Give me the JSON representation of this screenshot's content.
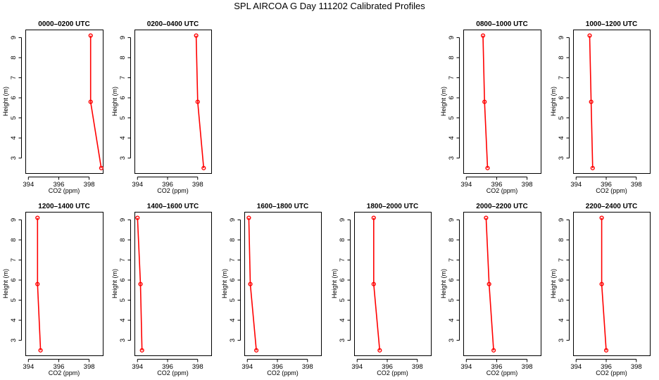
{
  "title": "SPL AIRCOA G  Day 111202  Calibrated Profiles",
  "colors": {
    "line": "#ff0000",
    "frame": "#000000",
    "background": "#ffffff"
  },
  "chart_data": [
    {
      "type": "line",
      "title": "0000–0200 UTC",
      "xlabel": "CO2 (ppm)",
      "ylabel": "Height (m)",
      "xlim": [
        393.8,
        398.9
      ],
      "ylim": [
        2.25,
        9.4
      ],
      "xticks": [
        394,
        396,
        398
      ],
      "yticks": [
        3,
        4,
        5,
        6,
        7,
        8,
        9
      ],
      "x": [
        398.1,
        398.1,
        398.8
      ],
      "y": [
        9.1,
        5.8,
        2.5
      ]
    },
    {
      "type": "line",
      "title": "0200–0400 UTC",
      "xlabel": "CO2 (ppm)",
      "ylabel": "Height (m)",
      "xlim": [
        393.8,
        398.9
      ],
      "ylim": [
        2.25,
        9.4
      ],
      "xticks": [
        394,
        396,
        398
      ],
      "yticks": [
        3,
        4,
        5,
        6,
        7,
        8,
        9
      ],
      "x": [
        397.9,
        398.0,
        398.4
      ],
      "y": [
        9.1,
        5.8,
        2.5
      ]
    },
    {
      "type": "line",
      "title": "0800–1000 UTC",
      "xlabel": "CO2 (ppm)",
      "ylabel": "Height (m)",
      "xlim": [
        393.8,
        398.9
      ],
      "ylim": [
        2.25,
        9.4
      ],
      "xticks": [
        394,
        396,
        398
      ],
      "yticks": [
        3,
        4,
        5,
        6,
        7,
        8,
        9
      ],
      "x": [
        395.1,
        395.2,
        395.4
      ],
      "y": [
        9.1,
        5.8,
        2.5
      ]
    },
    {
      "type": "line",
      "title": "1000–1200 UTC",
      "xlabel": "CO2 (ppm)",
      "ylabel": "Height (m)",
      "xlim": [
        393.8,
        398.9
      ],
      "ylim": [
        2.25,
        9.4
      ],
      "xticks": [
        394,
        396,
        398
      ],
      "yticks": [
        3,
        4,
        5,
        6,
        7,
        8,
        9
      ],
      "x": [
        394.9,
        395.0,
        395.1
      ],
      "y": [
        9.1,
        5.8,
        2.5
      ]
    },
    {
      "type": "line",
      "title": "1200–1400 UTC",
      "xlabel": "CO2 (ppm)",
      "ylabel": "Height (m)",
      "xlim": [
        393.8,
        398.9
      ],
      "ylim": [
        2.25,
        9.4
      ],
      "xticks": [
        394,
        396,
        398
      ],
      "yticks": [
        3,
        4,
        5,
        6,
        7,
        8,
        9
      ],
      "x": [
        394.6,
        394.6,
        394.8
      ],
      "y": [
        9.1,
        5.8,
        2.5
      ]
    },
    {
      "type": "line",
      "title": "1400–1600 UTC",
      "xlabel": "CO2 (ppm)",
      "ylabel": "Height (m)",
      "xlim": [
        393.8,
        398.9
      ],
      "ylim": [
        2.25,
        9.4
      ],
      "xticks": [
        394,
        396,
        398
      ],
      "yticks": [
        3,
        4,
        5,
        6,
        7,
        8,
        9
      ],
      "x": [
        394.0,
        394.2,
        394.3
      ],
      "y": [
        9.1,
        5.8,
        2.5
      ]
    },
    {
      "type": "line",
      "title": "1600–1800 UTC",
      "xlabel": "CO2 (ppm)",
      "ylabel": "Height (m)",
      "xlim": [
        393.8,
        398.9
      ],
      "ylim": [
        2.25,
        9.4
      ],
      "xticks": [
        394,
        396,
        398
      ],
      "yticks": [
        3,
        4,
        5,
        6,
        7,
        8,
        9
      ],
      "x": [
        394.1,
        394.2,
        394.6
      ],
      "y": [
        9.1,
        5.8,
        2.5
      ]
    },
    {
      "type": "line",
      "title": "1800–2000 UTC",
      "xlabel": "CO2 (ppm)",
      "ylabel": "Height (m)",
      "xlim": [
        393.8,
        398.9
      ],
      "ylim": [
        2.25,
        9.4
      ],
      "xticks": [
        394,
        396,
        398
      ],
      "yticks": [
        3,
        4,
        5,
        6,
        7,
        8,
        9
      ],
      "x": [
        395.1,
        395.1,
        395.5
      ],
      "y": [
        9.1,
        5.8,
        2.5
      ]
    },
    {
      "type": "line",
      "title": "2000–2200 UTC",
      "xlabel": "CO2 (ppm)",
      "ylabel": "Height (m)",
      "xlim": [
        393.8,
        398.9
      ],
      "ylim": [
        2.25,
        9.4
      ],
      "xticks": [
        394,
        396,
        398
      ],
      "yticks": [
        3,
        4,
        5,
        6,
        7,
        8,
        9
      ],
      "x": [
        395.3,
        395.5,
        395.8
      ],
      "y": [
        9.1,
        5.8,
        2.5
      ]
    },
    {
      "type": "line",
      "title": "2200–2400 UTC",
      "xlabel": "CO2 (ppm)",
      "ylabel": "Height (m)",
      "xlim": [
        393.8,
        398.9
      ],
      "ylim": [
        2.25,
        9.4
      ],
      "xticks": [
        394,
        396,
        398
      ],
      "yticks": [
        3,
        4,
        5,
        6,
        7,
        8,
        9
      ],
      "x": [
        395.7,
        395.7,
        396.0
      ],
      "y": [
        9.1,
        5.8,
        2.5
      ]
    }
  ]
}
